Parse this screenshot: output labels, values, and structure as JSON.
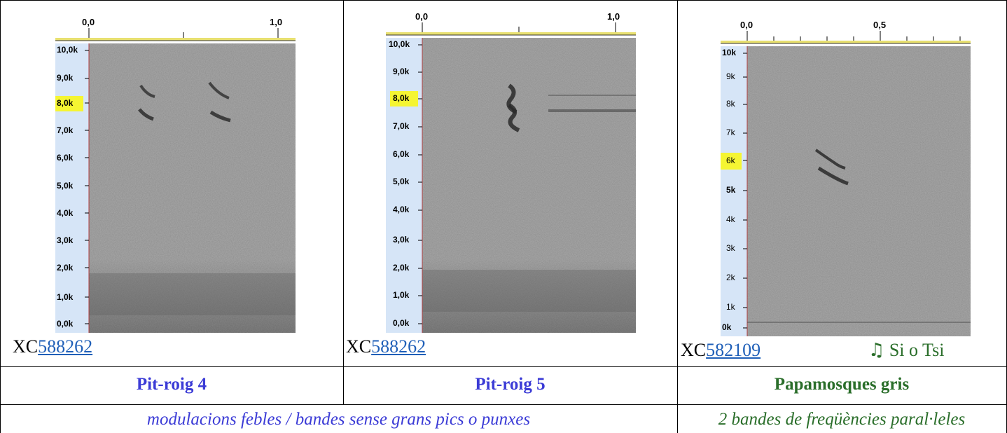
{
  "colors": {
    "pitroig_title": "#3b3bd6",
    "papamosques_title": "#2a6e2a",
    "description": "#3b3bd6",
    "description_green": "#2a6e2a",
    "link": "#1f5fb8",
    "axis_bg": "#d6e5f7",
    "highlight": "#f5f532"
  },
  "columns": [
    {
      "spectrogram": {
        "time_ticks": [
          "0,0",
          "1,0"
        ],
        "freq_ticks": [
          "10,0k",
          "9,0k",
          "8,0k",
          "7,0k",
          "6,0k",
          "5,0k",
          "4,0k",
          "3,0k",
          "2,0k",
          "1,0k",
          "0,0k"
        ],
        "highlighted_tick": "8,0k"
      },
      "caption_prefix": "XC",
      "caption_link": "588262",
      "title": "Pit-roig 4"
    },
    {
      "spectrogram": {
        "time_ticks": [
          "0,0",
          "1,0"
        ],
        "freq_ticks": [
          "10,0k",
          "9,0k",
          "8,0k",
          "7,0k",
          "6,0k",
          "5,0k",
          "4,0k",
          "3,0k",
          "2,0k",
          "1,0k",
          "0,0k"
        ],
        "highlighted_tick": "8,0k"
      },
      "caption_prefix": "XC",
      "caption_link": "588262",
      "title": "Pit-roig 5"
    },
    {
      "spectrogram": {
        "time_ticks": [
          "0,0",
          "0,5"
        ],
        "freq_ticks": [
          "10k",
          "9k",
          "8k",
          "7k",
          "6k",
          "5k",
          "4k",
          "3k",
          "2k",
          "1k",
          "0k"
        ],
        "highlighted_tick": "6k"
      },
      "caption_prefix": "XC",
      "caption_link": "582109",
      "note_icon": "music-note-icon",
      "note_glyph": "♫",
      "note_text": "Si o Tsi",
      "title": "Papamosques gris"
    }
  ],
  "descriptions": {
    "pitroig": "modulacions febles / bandes sense grans pics o punxes",
    "papamosques": "2 bandes de freqüències paral·leles"
  }
}
